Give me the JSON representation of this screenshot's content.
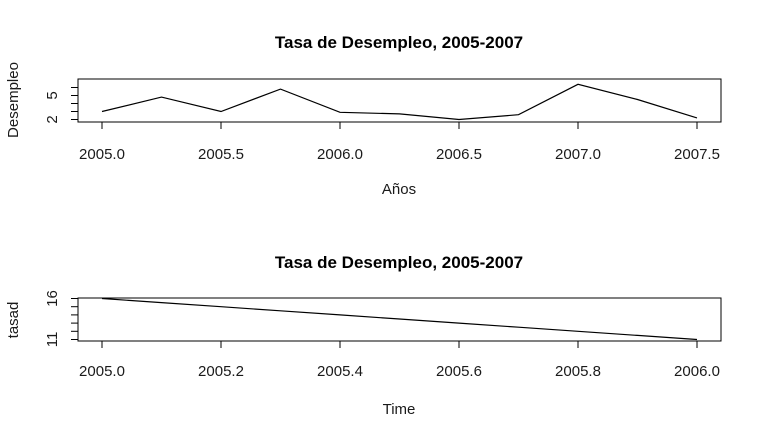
{
  "chart_data": [
    {
      "type": "line",
      "title": "Tasa de Desempleo, 2005-2007",
      "xlabel": "Años",
      "ylabel": "Desempleo",
      "xlim": [
        2005.0,
        2007.5
      ],
      "ylim": [
        2,
        7
      ],
      "x_ticks": [
        2005.0,
        2005.5,
        2006.0,
        2006.5,
        2007.0,
        2007.5
      ],
      "x_tick_labels": [
        "2005.0",
        "2005.5",
        "2006.0",
        "2006.5",
        "2007.0",
        "2007.5"
      ],
      "y_ticks": [
        2,
        3,
        4,
        5,
        6
      ],
      "y_tick_labels": [
        "2",
        "",
        "",
        "5",
        ""
      ],
      "grid": false,
      "series": [
        {
          "x": [
            2005.0,
            2005.25,
            2005.5,
            2005.75,
            2006.0,
            2006.25,
            2006.5,
            2006.75,
            2007.0,
            2007.25,
            2007.5
          ],
          "values": [
            3.0,
            4.8,
            3.0,
            5.8,
            2.9,
            2.7,
            2.0,
            2.6,
            6.4,
            4.5,
            2.2
          ]
        }
      ]
    },
    {
      "type": "line",
      "title": "Tasa de Desempleo, 2005-2007",
      "xlabel": "Time",
      "ylabel": "tasad",
      "xlim": [
        2005.0,
        2006.0
      ],
      "ylim": [
        11,
        16
      ],
      "x_ticks": [
        2005.0,
        2005.2,
        2005.4,
        2005.6,
        2005.8,
        2006.0
      ],
      "x_tick_labels": [
        "2005.0",
        "2005.2",
        "2005.4",
        "2005.6",
        "2005.8",
        "2006.0"
      ],
      "y_ticks": [
        11,
        12,
        13,
        14,
        15,
        16
      ],
      "y_tick_labels": [
        "11",
        "",
        "",
        "",
        "",
        "16"
      ],
      "grid": false,
      "series": [
        {
          "x": [
            2005.0,
            2005.1,
            2005.2,
            2005.3,
            2005.4,
            2005.5,
            2005.6,
            2005.7,
            2005.8,
            2005.9,
            2006.0
          ],
          "values": [
            16.0,
            15.5,
            15.0,
            14.5,
            14.0,
            13.5,
            13.0,
            12.5,
            12.0,
            11.5,
            11.0
          ]
        }
      ]
    }
  ]
}
